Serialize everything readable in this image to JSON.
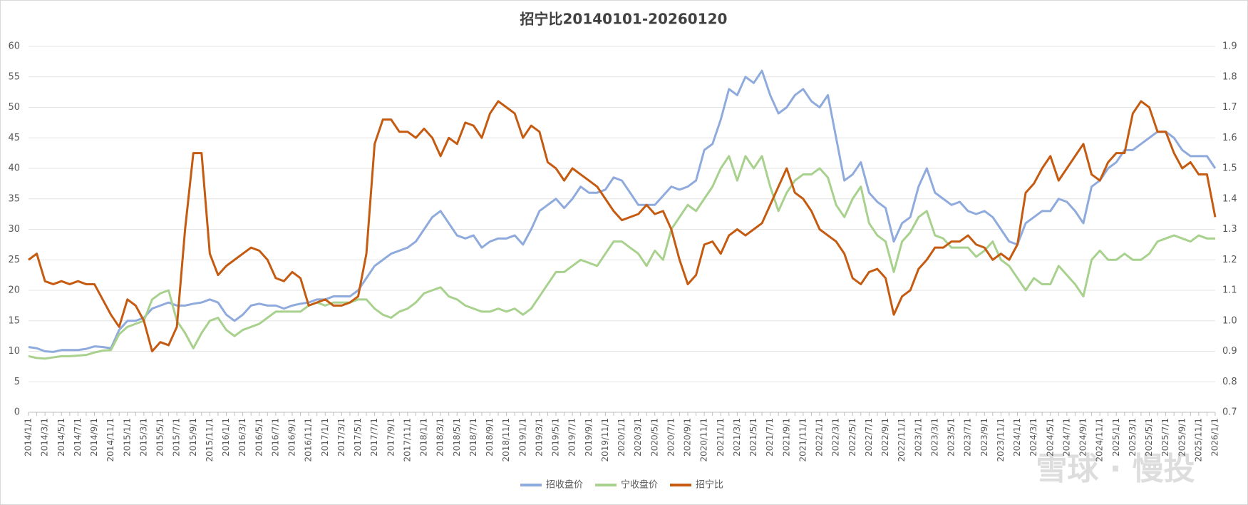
{
  "chart_data": {
    "type": "line",
    "title": "招宁比20140101-20260120",
    "categories": [
      "2014/1/1",
      null,
      "2014/3/1",
      null,
      "2014/5/1",
      null,
      "2014/7/1",
      null,
      "2014/9/1",
      null,
      "2014/11/1",
      null,
      "2015/1/1",
      null,
      "2015/3/1",
      null,
      "2015/5/1",
      null,
      "2015/7/1",
      null,
      "2015/9/1",
      null,
      "2015/11/1",
      null,
      "2016/1/1",
      null,
      "2016/3/1",
      null,
      "2016/5/1",
      null,
      "2016/7/1",
      null,
      "2016/9/1",
      null,
      "2016/11/1",
      null,
      "2017/1/1",
      null,
      "2017/3/1",
      null,
      "2017/5/1",
      null,
      "2017/7/1",
      null,
      "2017/9/1",
      null,
      "2017/11/1",
      null,
      "2018/1/1",
      null,
      "2018/3/1",
      null,
      "2018/5/1",
      null,
      "2018/7/1",
      null,
      "2018/9/1",
      null,
      "2018/11/1",
      null,
      "2019/1/1",
      null,
      "2019/3/1",
      null,
      "2019/5/1",
      null,
      "2019/7/1",
      null,
      "2019/9/1",
      null,
      "2019/11/1",
      null,
      "2020/1/1",
      null,
      "2020/3/1",
      null,
      "2020/5/1",
      null,
      "2020/7/1",
      null,
      "2020/9/1",
      null,
      "2020/11/1",
      null,
      "2021/1/1",
      null,
      "2021/3/1",
      null,
      "2021/5/1",
      null,
      "2021/7/1",
      null,
      "2021/9/1",
      null,
      "2021/11/1",
      null,
      "2022/1/1",
      null,
      "2022/3/1",
      null,
      "2022/5/1",
      null,
      "2022/7/1",
      null,
      "2022/9/1",
      null,
      "2022/11/1",
      null,
      "2023/1/1",
      null,
      "2023/3/1",
      null,
      "2023/5/1",
      null,
      "2023/7/1",
      null,
      "2023/9/1",
      null,
      "2023/11/1",
      null,
      "2024/1/1",
      null,
      "2024/3/1",
      null,
      "2024/5/1",
      null,
      "2024/7/1",
      null,
      "2024/9/1",
      null,
      "2024/11/1",
      null,
      "2025/1/1",
      null,
      "2025/3/1",
      null,
      "2025/5/1",
      null,
      "2025/7/1",
      null,
      "2025/9/1",
      null,
      "2025/11/1",
      null,
      "2026/1/1"
    ],
    "series": [
      {
        "name": "招收盘价",
        "color": "#8faadc",
        "values": [
          10.7,
          10.5,
          10.0,
          9.9,
          10.2,
          10.2,
          10.2,
          10.4,
          10.8,
          10.7,
          10.5,
          13.5,
          15,
          15,
          15.5,
          17,
          17.5,
          18,
          17.5,
          17.5,
          17.8,
          18,
          18.5,
          18,
          16,
          15,
          16,
          17.5,
          17.8,
          17.5,
          17.5,
          17,
          17.5,
          17.8,
          18,
          18.5,
          18.5,
          19,
          19,
          19,
          20,
          22,
          24,
          25,
          26,
          26.5,
          27,
          28,
          30,
          32,
          33,
          31,
          29,
          28.5,
          29,
          27,
          28,
          28.5,
          28.5,
          29,
          27.5,
          30,
          33,
          34,
          35,
          33.5,
          35,
          37,
          36,
          36,
          36.5,
          38.5,
          38,
          36,
          34,
          34,
          34,
          35.5,
          37,
          36.5,
          37,
          38,
          43,
          44,
          48,
          53,
          52,
          55,
          54,
          56,
          52,
          49,
          50,
          52,
          53,
          51,
          50,
          52,
          45,
          38,
          39,
          41,
          36,
          34.5,
          33.5,
          28,
          31,
          32,
          37,
          40,
          36,
          35,
          34,
          34.5,
          33,
          32.5,
          33,
          32,
          30,
          28,
          27.5,
          31,
          32,
          33,
          33,
          35,
          34.5,
          33,
          31,
          37,
          38,
          40,
          41,
          43,
          43,
          44,
          45,
          46,
          46,
          45,
          43,
          42,
          42,
          42,
          40
        ]
      },
      {
        "name": "宁收盘价",
        "color": "#a9d18e",
        "values": [
          9.2,
          8.9,
          8.8,
          9.0,
          9.2,
          9.2,
          9.3,
          9.4,
          9.8,
          10.1,
          10.2,
          12.8,
          14,
          14.5,
          15,
          18.5,
          19.5,
          20,
          15,
          13,
          10.5,
          13,
          15,
          15.5,
          13.5,
          12.5,
          13.5,
          14,
          14.5,
          15.5,
          16.5,
          16.5,
          16.5,
          16.5,
          17.5,
          18,
          17.5,
          18,
          18,
          18,
          18.5,
          18.5,
          17,
          16,
          15.5,
          16.5,
          17,
          18,
          19.5,
          20,
          20.5,
          19,
          18.5,
          17.5,
          17,
          16.5,
          16.5,
          17,
          16.5,
          17,
          16,
          17,
          19,
          21,
          23,
          23,
          24,
          25,
          24.5,
          24,
          26,
          28,
          28,
          27,
          26,
          24,
          26.5,
          25,
          30,
          32,
          34,
          33,
          35,
          37,
          40,
          42,
          38,
          42,
          40,
          42,
          37,
          33,
          36,
          38,
          39,
          39,
          40,
          38.5,
          34,
          32,
          35,
          37,
          31,
          29,
          28,
          23,
          28,
          29.5,
          32,
          33,
          29,
          28.5,
          27,
          27,
          27,
          25.5,
          26.5,
          28,
          25,
          24,
          22,
          20,
          22,
          21,
          21,
          24,
          22.5,
          21,
          19,
          25,
          26.5,
          25,
          25,
          26,
          25,
          25,
          26,
          28,
          28.5,
          29,
          28.5,
          28,
          29,
          28.5,
          28.5
        ]
      },
      {
        "name": "招宁比",
        "color": "#c55a11",
        "axis": "y2",
        "values": [
          1.2,
          1.22,
          1.13,
          1.12,
          1.13,
          1.12,
          1.13,
          1.12,
          1.12,
          1.07,
          1.02,
          0.98,
          1.07,
          1.05,
          1.0,
          0.9,
          0.93,
          0.92,
          0.98,
          1.3,
          1.55,
          1.55,
          1.22,
          1.15,
          1.18,
          1.2,
          1.22,
          1.24,
          1.23,
          1.2,
          1.14,
          1.13,
          1.16,
          1.14,
          1.05,
          1.06,
          1.07,
          1.05,
          1.05,
          1.06,
          1.08,
          1.22,
          1.58,
          1.66,
          1.66,
          1.62,
          1.62,
          1.6,
          1.63,
          1.6,
          1.54,
          1.6,
          1.58,
          1.65,
          1.64,
          1.6,
          1.68,
          1.72,
          1.7,
          1.68,
          1.6,
          1.64,
          1.62,
          1.52,
          1.5,
          1.46,
          1.5,
          1.48,
          1.46,
          1.44,
          1.4,
          1.36,
          1.33,
          1.34,
          1.35,
          1.38,
          1.35,
          1.36,
          1.3,
          1.2,
          1.12,
          1.15,
          1.25,
          1.26,
          1.22,
          1.28,
          1.3,
          1.28,
          1.3,
          1.32,
          1.38,
          1.44,
          1.5,
          1.42,
          1.4,
          1.36,
          1.3,
          1.28,
          1.26,
          1.22,
          1.14,
          1.12,
          1.16,
          1.17,
          1.14,
          1.02,
          1.08,
          1.1,
          1.17,
          1.2,
          1.24,
          1.24,
          1.26,
          1.26,
          1.28,
          1.25,
          1.24,
          1.2,
          1.22,
          1.2,
          1.25,
          1.42,
          1.45,
          1.5,
          1.54,
          1.46,
          1.5,
          1.54,
          1.58,
          1.48,
          1.46,
          1.52,
          1.55,
          1.55,
          1.68,
          1.72,
          1.7,
          1.62,
          1.62,
          1.55,
          1.5,
          1.52,
          1.48,
          1.48,
          1.34
        ]
      }
    ],
    "ylim": [
      0,
      60
    ],
    "yticks": [
      0,
      5,
      10,
      15,
      20,
      25,
      30,
      35,
      40,
      45,
      50,
      55,
      60
    ],
    "y2lim": [
      0.7,
      1.9
    ],
    "y2ticks": [
      0.7,
      0.8,
      0.9,
      {
        "value": 1,
        "label": "1.0"
      },
      1.1,
      1.2,
      1.3,
      1.4,
      1.5,
      1.6,
      1.7,
      1.8,
      1.9
    ],
    "grid": true,
    "legend": "bottom",
    "watermark": "雪球 · 慢投"
  }
}
